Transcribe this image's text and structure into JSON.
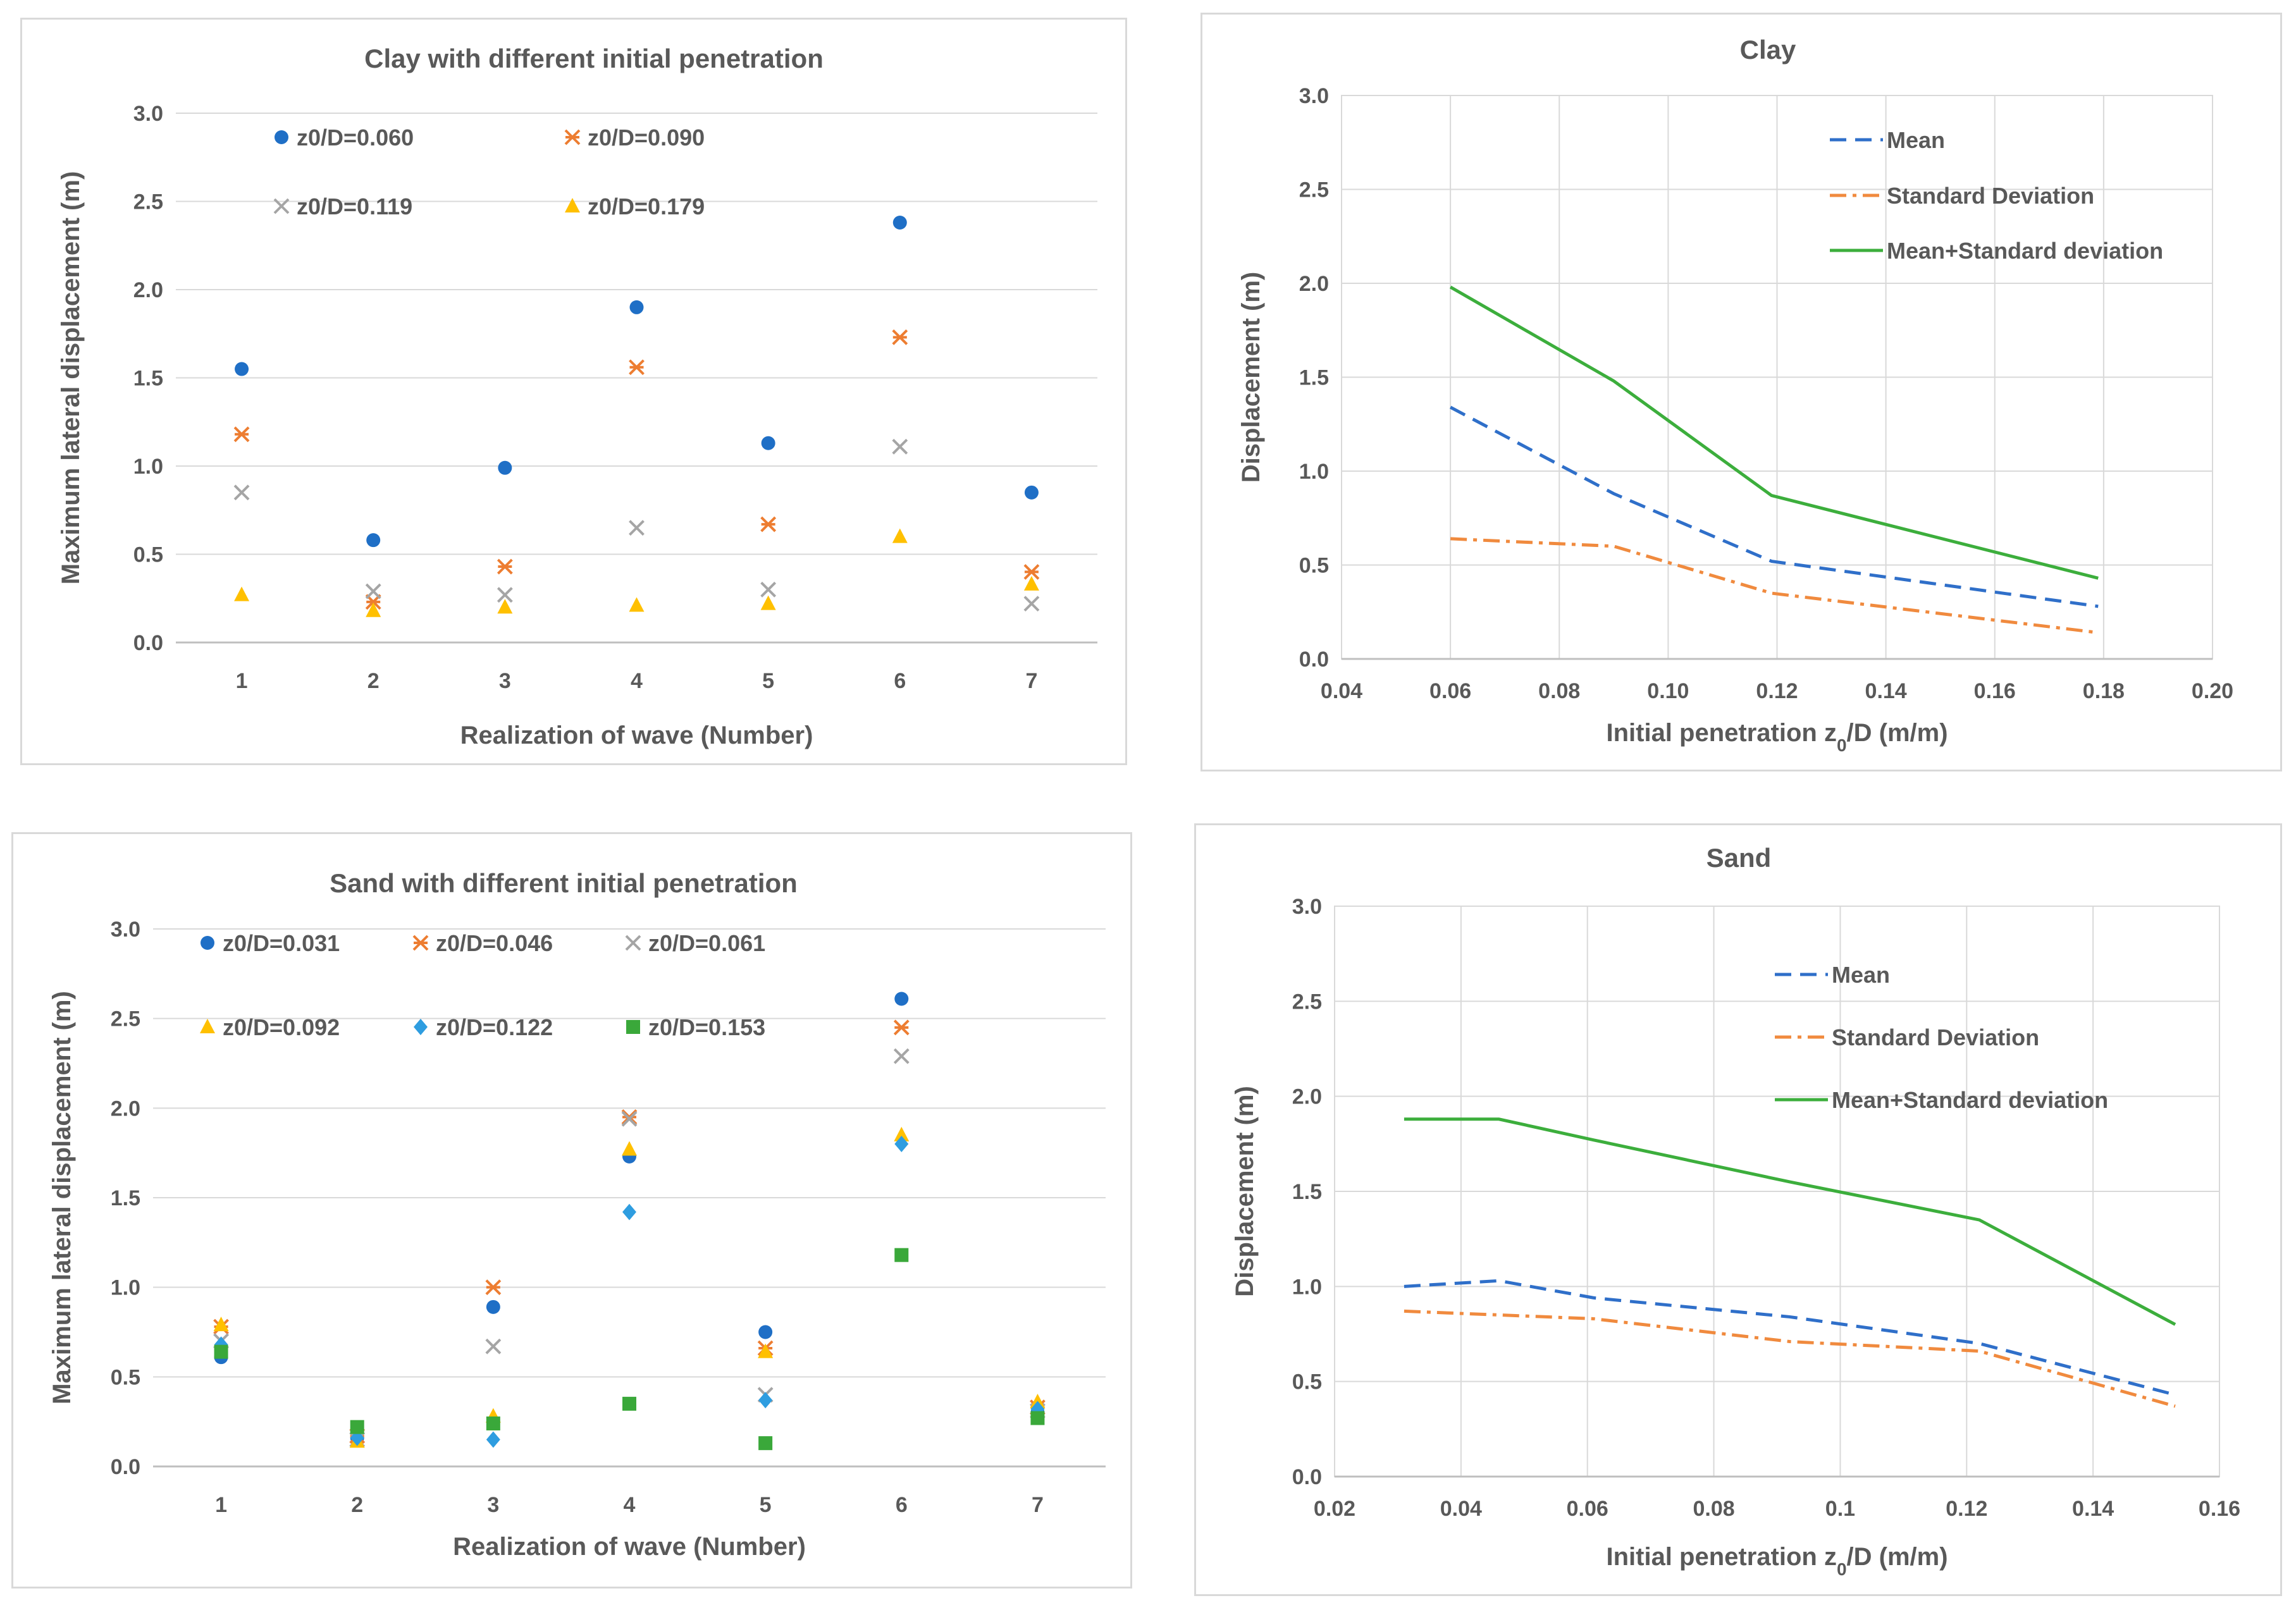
{
  "colors": {
    "blue": "#1f6fc6",
    "orange": "#ed7d31",
    "gray": "#a5a5a5",
    "yellow": "#ffc000",
    "lightblue": "#2e9de0",
    "green": "#3aa83a",
    "line_blue": "#2f6fc9",
    "line_orange": "#f08a3e",
    "line_green": "#3cae3c"
  },
  "chart_data": [
    {
      "type": "scatter",
      "title": "Clay with different initial penetration",
      "xlabel": "Realization of wave (Number)",
      "ylabel": "Maximum lateral displacement (m)",
      "x_categories": [
        "1",
        "2",
        "3",
        "4",
        "5",
        "6",
        "7"
      ],
      "ylim": [
        0,
        3.0
      ],
      "y_ticks": [
        "0.0",
        "0.5",
        "1.0",
        "1.5",
        "2.0",
        "2.5",
        "3.0"
      ],
      "grid": true,
      "series": [
        {
          "name": "z0/D=0.060",
          "marker": "circle",
          "color": "blue",
          "values": [
            1.55,
            0.58,
            0.99,
            1.9,
            1.13,
            2.38,
            0.85
          ]
        },
        {
          "name": "z0/D=0.090",
          "marker": "star",
          "color": "orange",
          "values": [
            1.18,
            0.23,
            0.43,
            1.56,
            0.67,
            1.73,
            0.4
          ]
        },
        {
          "name": "z0/D=0.119",
          "marker": "x",
          "color": "gray",
          "values": [
            0.85,
            0.29,
            0.27,
            0.65,
            0.3,
            1.11,
            0.22
          ]
        },
        {
          "name": "z0/D=0.179",
          "marker": "triangle",
          "color": "yellow",
          "values": [
            0.27,
            0.18,
            0.2,
            0.21,
            0.22,
            0.6,
            0.33
          ]
        }
      ]
    },
    {
      "type": "line",
      "title": "Clay",
      "xlabel": "Initial penetration z0/D (m/m)",
      "ylabel": "Displacement (m)",
      "xlim": [
        0.04,
        0.2
      ],
      "x_ticks": [
        "0.04",
        "0.06",
        "0.08",
        "0.10",
        "0.12",
        "0.14",
        "0.16",
        "0.18",
        "0.20"
      ],
      "ylim": [
        0,
        3.0
      ],
      "y_ticks": [
        "0.0",
        "0.5",
        "1.0",
        "1.5",
        "2.0",
        "2.5",
        "3.0"
      ],
      "grid": true,
      "x": [
        0.06,
        0.09,
        0.119,
        0.179
      ],
      "series": [
        {
          "name": "Mean",
          "style": "dash",
          "color": "line_blue",
          "values": [
            1.34,
            0.88,
            0.52,
            0.28
          ]
        },
        {
          "name": "Standard Deviation",
          "style": "dashdot",
          "color": "line_orange",
          "values": [
            0.64,
            0.6,
            0.35,
            0.14
          ]
        },
        {
          "name": "Mean+Standard deviation",
          "style": "solid",
          "color": "line_green",
          "values": [
            1.98,
            1.48,
            0.87,
            0.43
          ]
        }
      ]
    },
    {
      "type": "scatter",
      "title": "Sand with different initial penetration",
      "xlabel": "Realization of wave (Number)",
      "ylabel": "Maximum lateral displacement (m)",
      "x_categories": [
        "1",
        "2",
        "3",
        "4",
        "5",
        "6",
        "7"
      ],
      "ylim": [
        0,
        3.0
      ],
      "y_ticks": [
        "0.0",
        "0.5",
        "1.0",
        "1.5",
        "2.0",
        "2.5",
        "3.0"
      ],
      "grid": true,
      "series": [
        {
          "name": "z0/D=0.031",
          "marker": "circle",
          "color": "blue",
          "values": [
            0.61,
            0.16,
            0.89,
            1.73,
            0.75,
            2.61,
            0.3
          ]
        },
        {
          "name": "z0/D=0.046",
          "marker": "star",
          "color": "orange",
          "values": [
            0.78,
            0.17,
            1.0,
            1.95,
            0.66,
            2.45,
            0.33
          ]
        },
        {
          "name": "z0/D=0.061",
          "marker": "x",
          "color": "gray",
          "values": [
            0.7,
            0.15,
            0.67,
            1.94,
            0.4,
            2.29,
            0.31
          ]
        },
        {
          "name": "z0/D=0.092",
          "marker": "triangle",
          "color": "yellow",
          "values": [
            0.79,
            0.14,
            0.28,
            1.77,
            0.64,
            1.85,
            0.36
          ]
        },
        {
          "name": "z0/D=0.122",
          "marker": "diamond",
          "color": "lightblue",
          "values": [
            0.68,
            0.16,
            0.15,
            1.42,
            0.37,
            1.8,
            0.32
          ]
        },
        {
          "name": "z0/D=0.153",
          "marker": "square",
          "color": "green",
          "values": [
            0.64,
            0.22,
            0.24,
            0.35,
            0.13,
            1.18,
            0.27
          ]
        }
      ]
    },
    {
      "type": "line",
      "title": "Sand",
      "xlabel": "Initial penetration z0/D (m/m)",
      "ylabel": "Displacement (m)",
      "xlim": [
        0.02,
        0.16
      ],
      "x_ticks": [
        "0.02",
        "0.04",
        "0.06",
        "0.08",
        "0.1",
        "0.12",
        "0.14",
        "0.16"
      ],
      "ylim": [
        0,
        3.0
      ],
      "y_ticks": [
        "0.0",
        "0.5",
        "1.0",
        "1.5",
        "2.0",
        "2.5",
        "3.0"
      ],
      "grid": true,
      "x": [
        0.031,
        0.046,
        0.061,
        0.092,
        0.122,
        0.153
      ],
      "series": [
        {
          "name": "Mean",
          "style": "dash",
          "color": "line_blue",
          "values": [
            1.0,
            1.03,
            0.94,
            0.84,
            0.7,
            0.43
          ]
        },
        {
          "name": "Standard Deviation",
          "style": "dashdot",
          "color": "line_orange",
          "values": [
            0.87,
            0.85,
            0.83,
            0.71,
            0.66,
            0.37
          ]
        },
        {
          "name": "Mean+Standard deviation",
          "style": "solid",
          "color": "line_green",
          "values": [
            1.88,
            1.88,
            1.77,
            1.55,
            1.35,
            0.8
          ]
        }
      ]
    }
  ]
}
